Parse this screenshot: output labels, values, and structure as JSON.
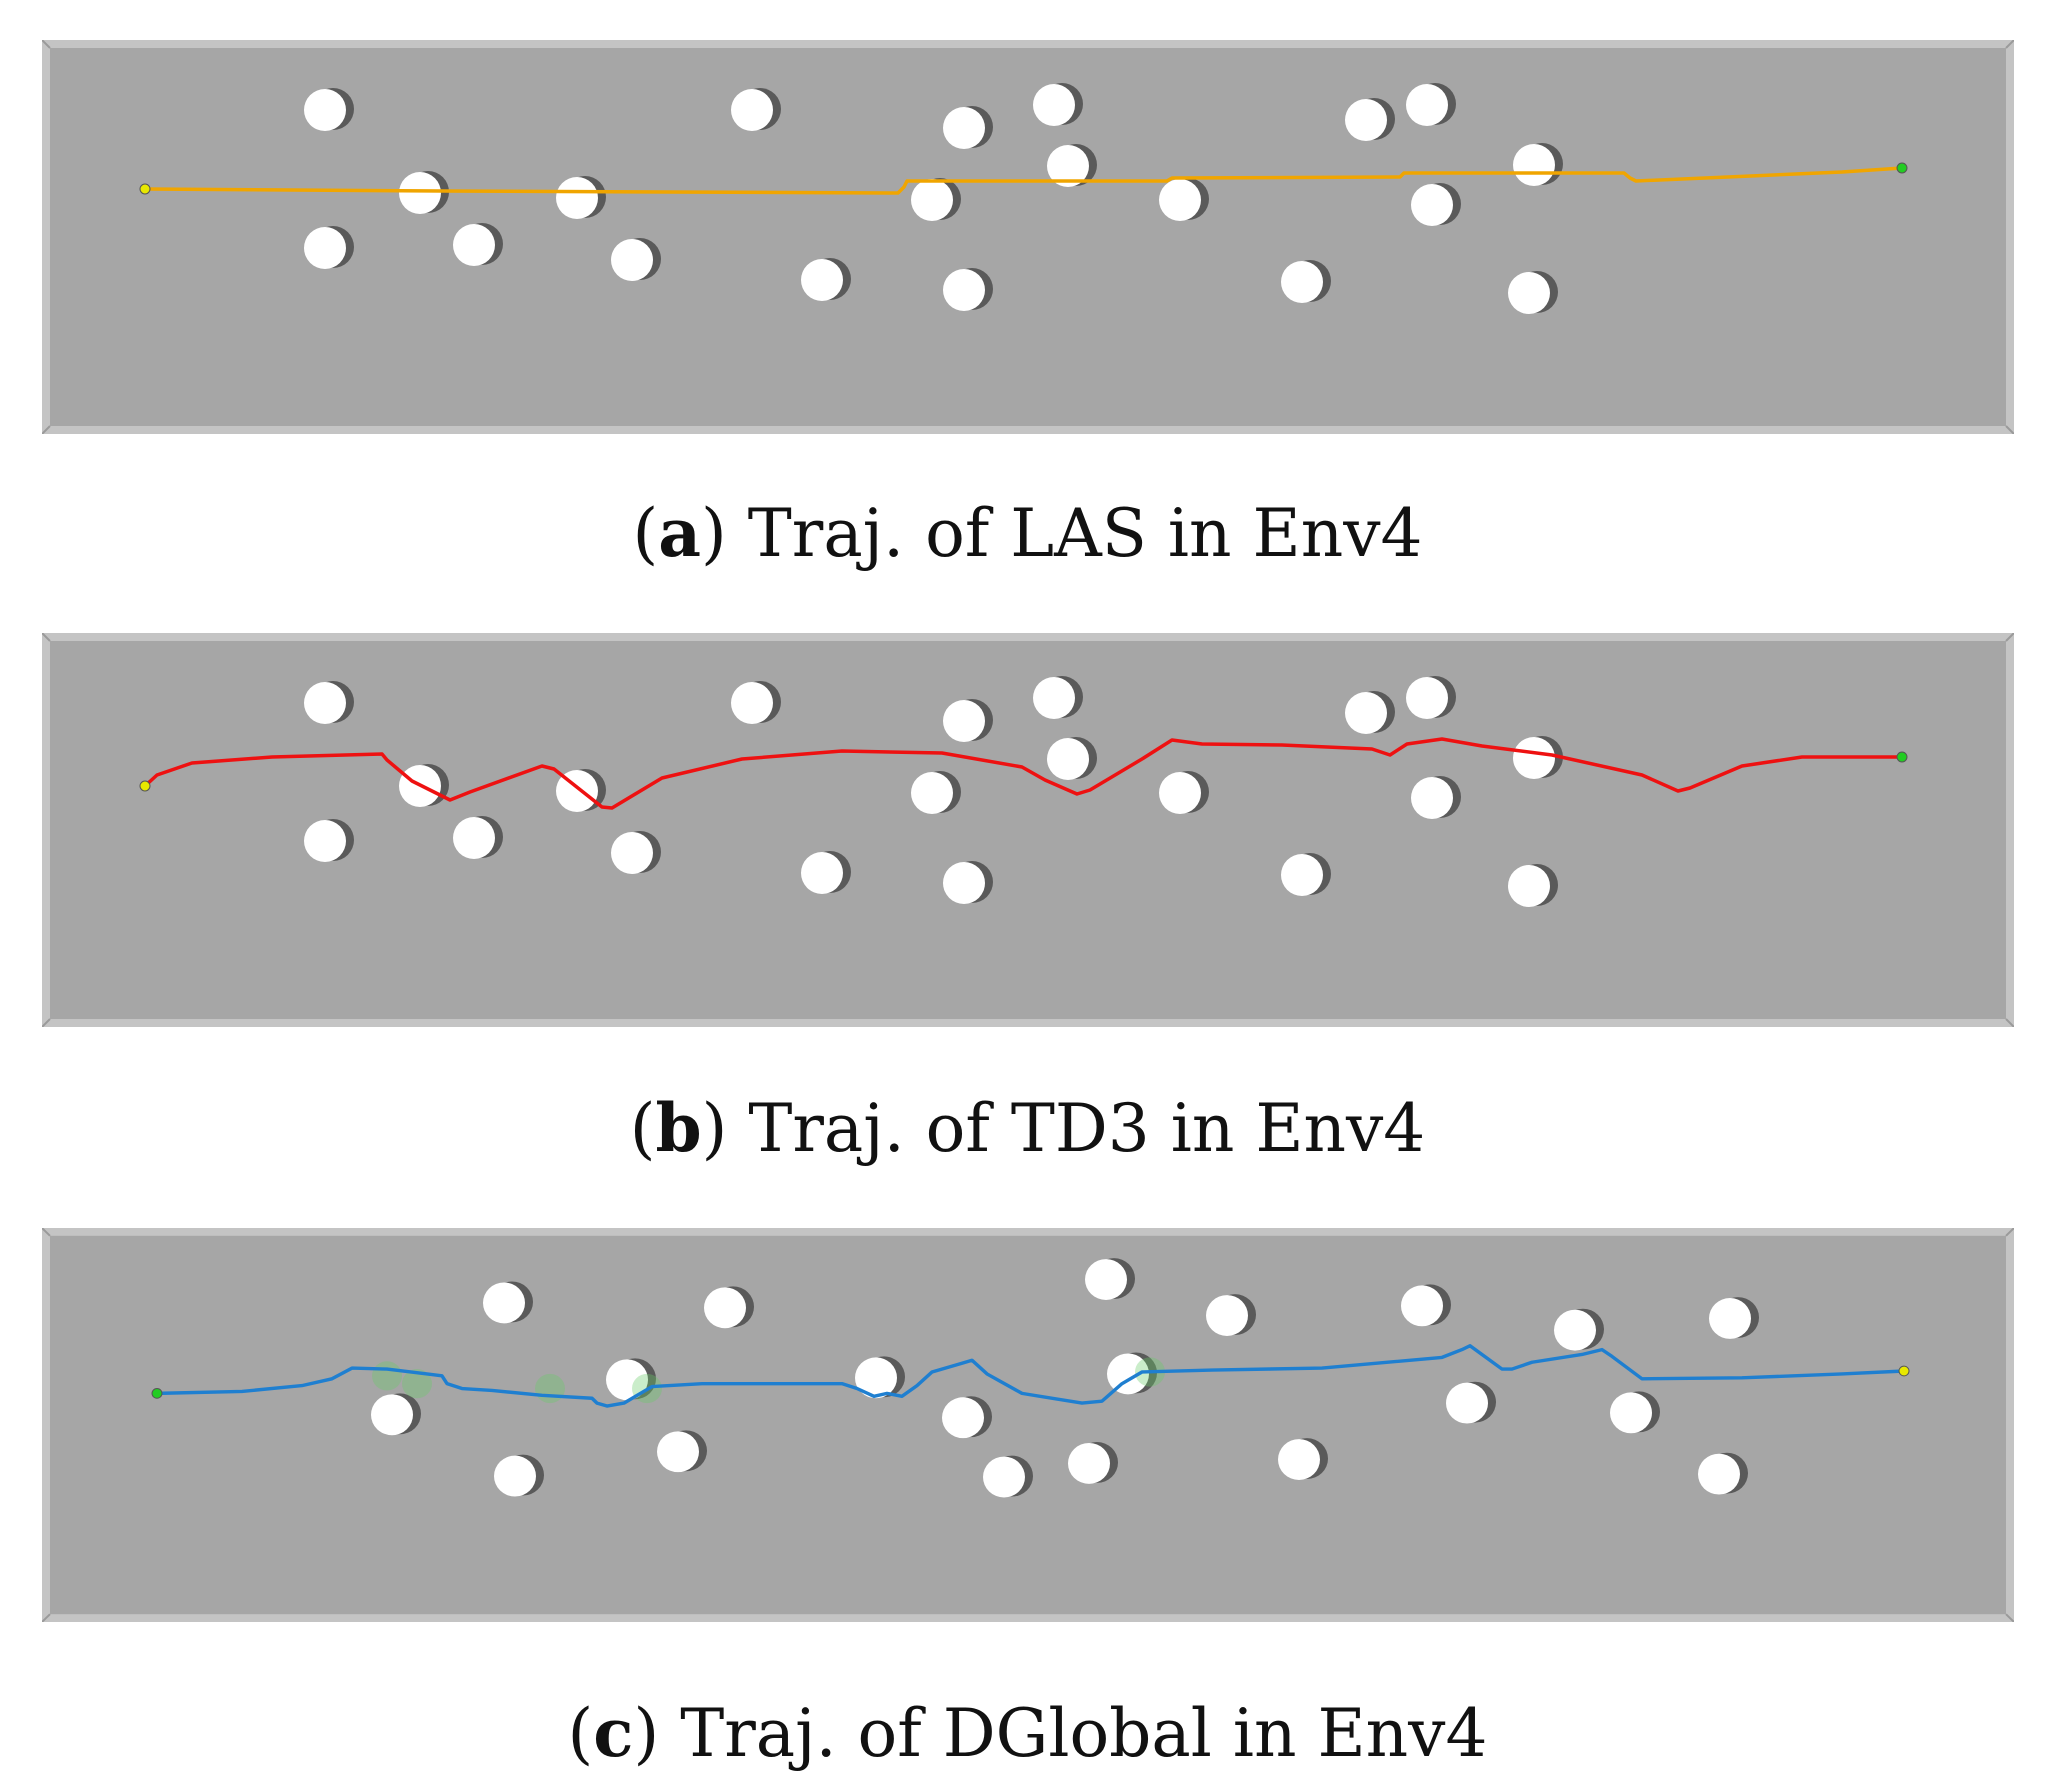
{
  "figure": {
    "panels": [
      {
        "id": "a",
        "caption_letter": "a",
        "caption_text": "Traj. of LAS in Env4",
        "trajectory_color": "#f0a500",
        "start_marker_color": "#e8e800",
        "goal_marker_color": "#22cc22",
        "show_green_blobs": false
      },
      {
        "id": "b",
        "caption_letter": "b",
        "caption_text": "Traj. of TD3 in Env4",
        "trajectory_color": "#ee1111",
        "start_marker_color": "#e8e800",
        "goal_marker_color": "#22cc22",
        "show_green_blobs": false
      },
      {
        "id": "c",
        "caption_letter": "c",
        "caption_text": "Traj. of DGlobal in Env4",
        "trajectory_color": "#1f7fd0",
        "start_marker_color": "#22cc22",
        "goal_marker_color": "#e8e800",
        "show_green_blobs": true
      }
    ],
    "colors": {
      "floor": "#a6a6a6",
      "wall": "#c4c4c4",
      "obstacle": "#ffffff",
      "obstacle_shadow": "#5a5a5a"
    }
  }
}
